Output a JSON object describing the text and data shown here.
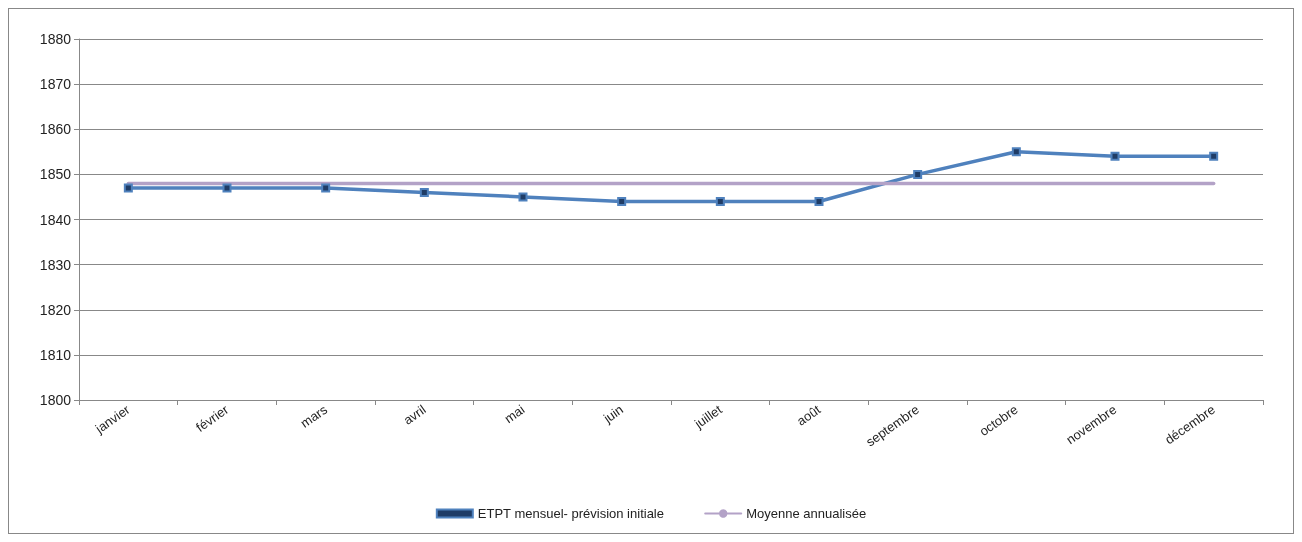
{
  "chart_data": {
    "type": "line",
    "categories": [
      "janvier",
      "février",
      "mars",
      "avril",
      "mai",
      "juin",
      "juillet",
      "août",
      "septembre",
      "octobre",
      "novembre",
      "décembre"
    ],
    "series": [
      {
        "name": "ETPT mensuel- prévision initiale",
        "color": "#4f81bd",
        "marker": "square",
        "values": [
          1847,
          1847,
          1847,
          1846,
          1845,
          1844,
          1844,
          1844,
          1850,
          1855,
          1854,
          1854
        ]
      },
      {
        "name": "Moyenne annualisée",
        "color": "#b3a2c7",
        "marker": "none",
        "values": [
          1848,
          1848,
          1848,
          1848,
          1848,
          1848,
          1848,
          1848,
          1848,
          1848,
          1848,
          1848
        ]
      }
    ],
    "ylim": [
      1800,
      1880
    ],
    "yticks": [
      1800,
      1810,
      1820,
      1830,
      1840,
      1850,
      1860,
      1870,
      1880
    ],
    "grid": "y",
    "legend": "bottom",
    "line_style": "solid"
  }
}
